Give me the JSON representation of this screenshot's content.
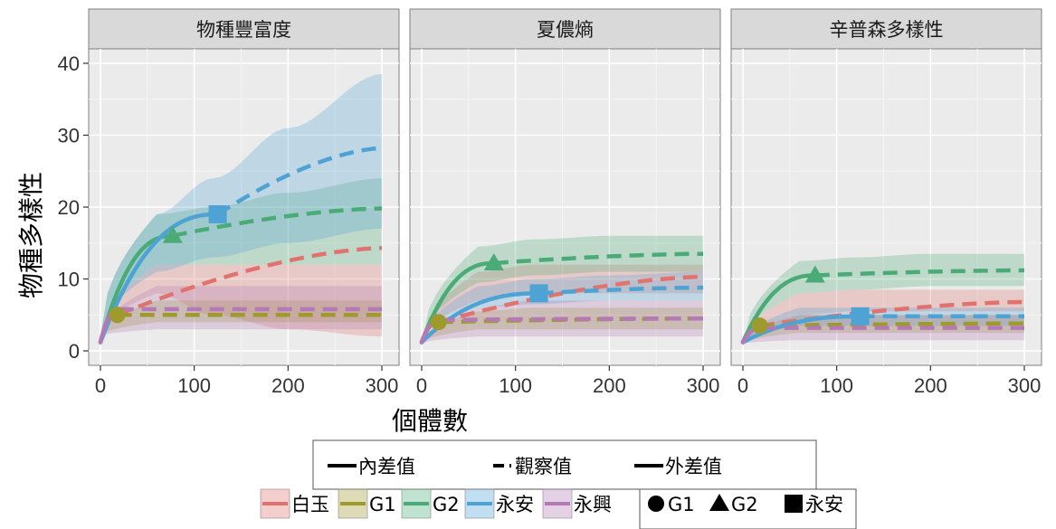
{
  "chart_data": {
    "type": "line",
    "panels": [
      {
        "title": "物種豐富度",
        "series": [
          {
            "name": "白玉",
            "ref_x": 18,
            "ref_y": 5,
            "interp_end_y": 14.2,
            "extrap_end_y": 14.3,
            "ci_low": [
              2,
              8,
              5,
              3,
              2
            ],
            "ci_high": [
              2,
              12,
              12,
              12,
              12
            ]
          },
          {
            "name": "G1",
            "ref_x": 18,
            "ref_y": 5,
            "interp_end_y": 5,
            "extrap_end_y": 5,
            "ci_low": [
              2,
              4,
              4,
              4,
              4
            ],
            "ci_high": [
              2,
              7,
              7,
              7,
              7
            ]
          },
          {
            "name": "G2",
            "ref_x": 77,
            "ref_y": 16,
            "interp_end_y": 16,
            "extrap_end_y": 19.8,
            "ci_low": [
              2,
              12,
              12,
              12,
              12
            ],
            "ci_high": [
              2,
              19,
              20,
              22,
              24
            ]
          },
          {
            "name": "永安",
            "ref_x": 125,
            "ref_y": 19,
            "interp_end_y": 19,
            "extrap_end_y": 28.2,
            "ci_low": [
              2,
              11,
              13,
              15,
              17
            ],
            "ci_high": [
              2,
              19,
              24,
              31,
              38.5
            ]
          },
          {
            "name": "永興",
            "ref_x": 20,
            "ref_y": 5.8,
            "interp_end_y": 5.8,
            "extrap_end_y": 5.8,
            "ci_low": [
              2,
              3,
              3,
              3,
              3
            ],
            "ci_high": [
              2,
              9,
              9,
              9,
              9
            ]
          }
        ]
      },
      {
        "title": "夏儂熵",
        "series": [
          {
            "name": "白玉",
            "ref_x": 18,
            "ref_y": 4,
            "interp_end_y": 9.5,
            "extrap_end_y": 10.3,
            "ci_low": [
              1,
              7,
              8,
              8,
              8
            ],
            "ci_high": [
              1,
              11,
              12,
              12,
              12
            ]
          },
          {
            "name": "G1",
            "ref_x": 18,
            "ref_y": 4,
            "interp_end_y": 4,
            "extrap_end_y": 4.5,
            "ci_low": [
              1,
              3,
              3,
              3,
              3
            ],
            "ci_high": [
              1,
              5.5,
              6,
              6,
              6
            ]
          },
          {
            "name": "G2",
            "ref_x": 77,
            "ref_y": 12.2,
            "interp_end_y": 12.2,
            "extrap_end_y": 13.5,
            "ci_low": [
              1,
              9.5,
              10.5,
              11,
              11
            ],
            "ci_high": [
              1,
              14.5,
              15.5,
              16,
              16
            ]
          },
          {
            "name": "永安",
            "ref_x": 125,
            "ref_y": 8,
            "interp_end_y": 8,
            "extrap_end_y": 8.8,
            "ci_low": [
              1,
              6,
              6.5,
              7,
              7
            ],
            "ci_high": [
              1,
              9,
              10,
              10.5,
              11
            ]
          },
          {
            "name": "永興",
            "ref_x": 20,
            "ref_y": 4.3,
            "interp_end_y": 4.3,
            "extrap_end_y": 4.5,
            "ci_low": [
              1,
              2,
              2,
              2,
              2
            ],
            "ci_high": [
              1,
              6,
              7,
              7,
              7
            ]
          }
        ]
      },
      {
        "title": "辛普森多樣性",
        "series": [
          {
            "name": "白玉",
            "ref_x": 18,
            "ref_y": 3.5,
            "interp_end_y": 6,
            "extrap_end_y": 6.8,
            "ci_low": [
              1,
              5,
              5.5,
              5.5,
              5.5
            ],
            "ci_high": [
              1,
              8,
              8.5,
              8.5,
              8.5
            ]
          },
          {
            "name": "G1",
            "ref_x": 18,
            "ref_y": 3.5,
            "interp_end_y": 3.5,
            "extrap_end_y": 3.8,
            "ci_low": [
              1,
              2.5,
              2.5,
              2.5,
              2.5
            ],
            "ci_high": [
              1,
              5,
              5,
              5,
              5
            ]
          },
          {
            "name": "G2",
            "ref_x": 77,
            "ref_y": 10.5,
            "interp_end_y": 10.5,
            "extrap_end_y": 11.2,
            "ci_low": [
              1,
              8,
              8.5,
              9,
              9
            ],
            "ci_high": [
              1,
              12.5,
              13,
              13.5,
              13.5
            ]
          },
          {
            "name": "永安",
            "ref_x": 125,
            "ref_y": 4.8,
            "interp_end_y": 4.8,
            "extrap_end_y": 4.8,
            "ci_low": [
              1,
              3.5,
              3.5,
              3.5,
              3.5
            ],
            "ci_high": [
              1,
              6,
              6,
              6,
              6
            ]
          },
          {
            "name": "永興",
            "ref_x": 20,
            "ref_y": 3.2,
            "interp_end_y": 3.2,
            "extrap_end_y": 3.2,
            "ci_low": [
              1,
              1.5,
              1.5,
              1.5,
              1.5
            ],
            "ci_high": [
              1,
              5,
              5,
              5,
              5
            ]
          }
        ]
      }
    ],
    "ci_x": [
      0,
      60,
      120,
      200,
      300
    ],
    "xlim": [
      0,
      300
    ],
    "ylim": [
      0,
      40
    ],
    "x_ticks": [
      "0",
      "100",
      "200",
      "300"
    ],
    "y_ticks": [
      "0",
      "10",
      "20",
      "30",
      "40"
    ],
    "xlabel": "個體數",
    "ylabel": "物種多樣性",
    "grid": true,
    "legend_position": "bottom",
    "colors": {
      "白玉": "#e0736e",
      "G1": "#9e9a2e",
      "G2": "#4aab77",
      "永安": "#4ea3d4",
      "永興": "#b57ab5"
    },
    "markers": {
      "G1": "circle",
      "G2": "triangle",
      "永安": "square"
    }
  },
  "legend": {
    "line_types": [
      "內差值",
      "觀察值",
      "外差值"
    ],
    "series": [
      "白玉",
      "G1",
      "G2",
      "永安",
      "永興"
    ],
    "markers": [
      "G1",
      "G2",
      "永安"
    ]
  }
}
